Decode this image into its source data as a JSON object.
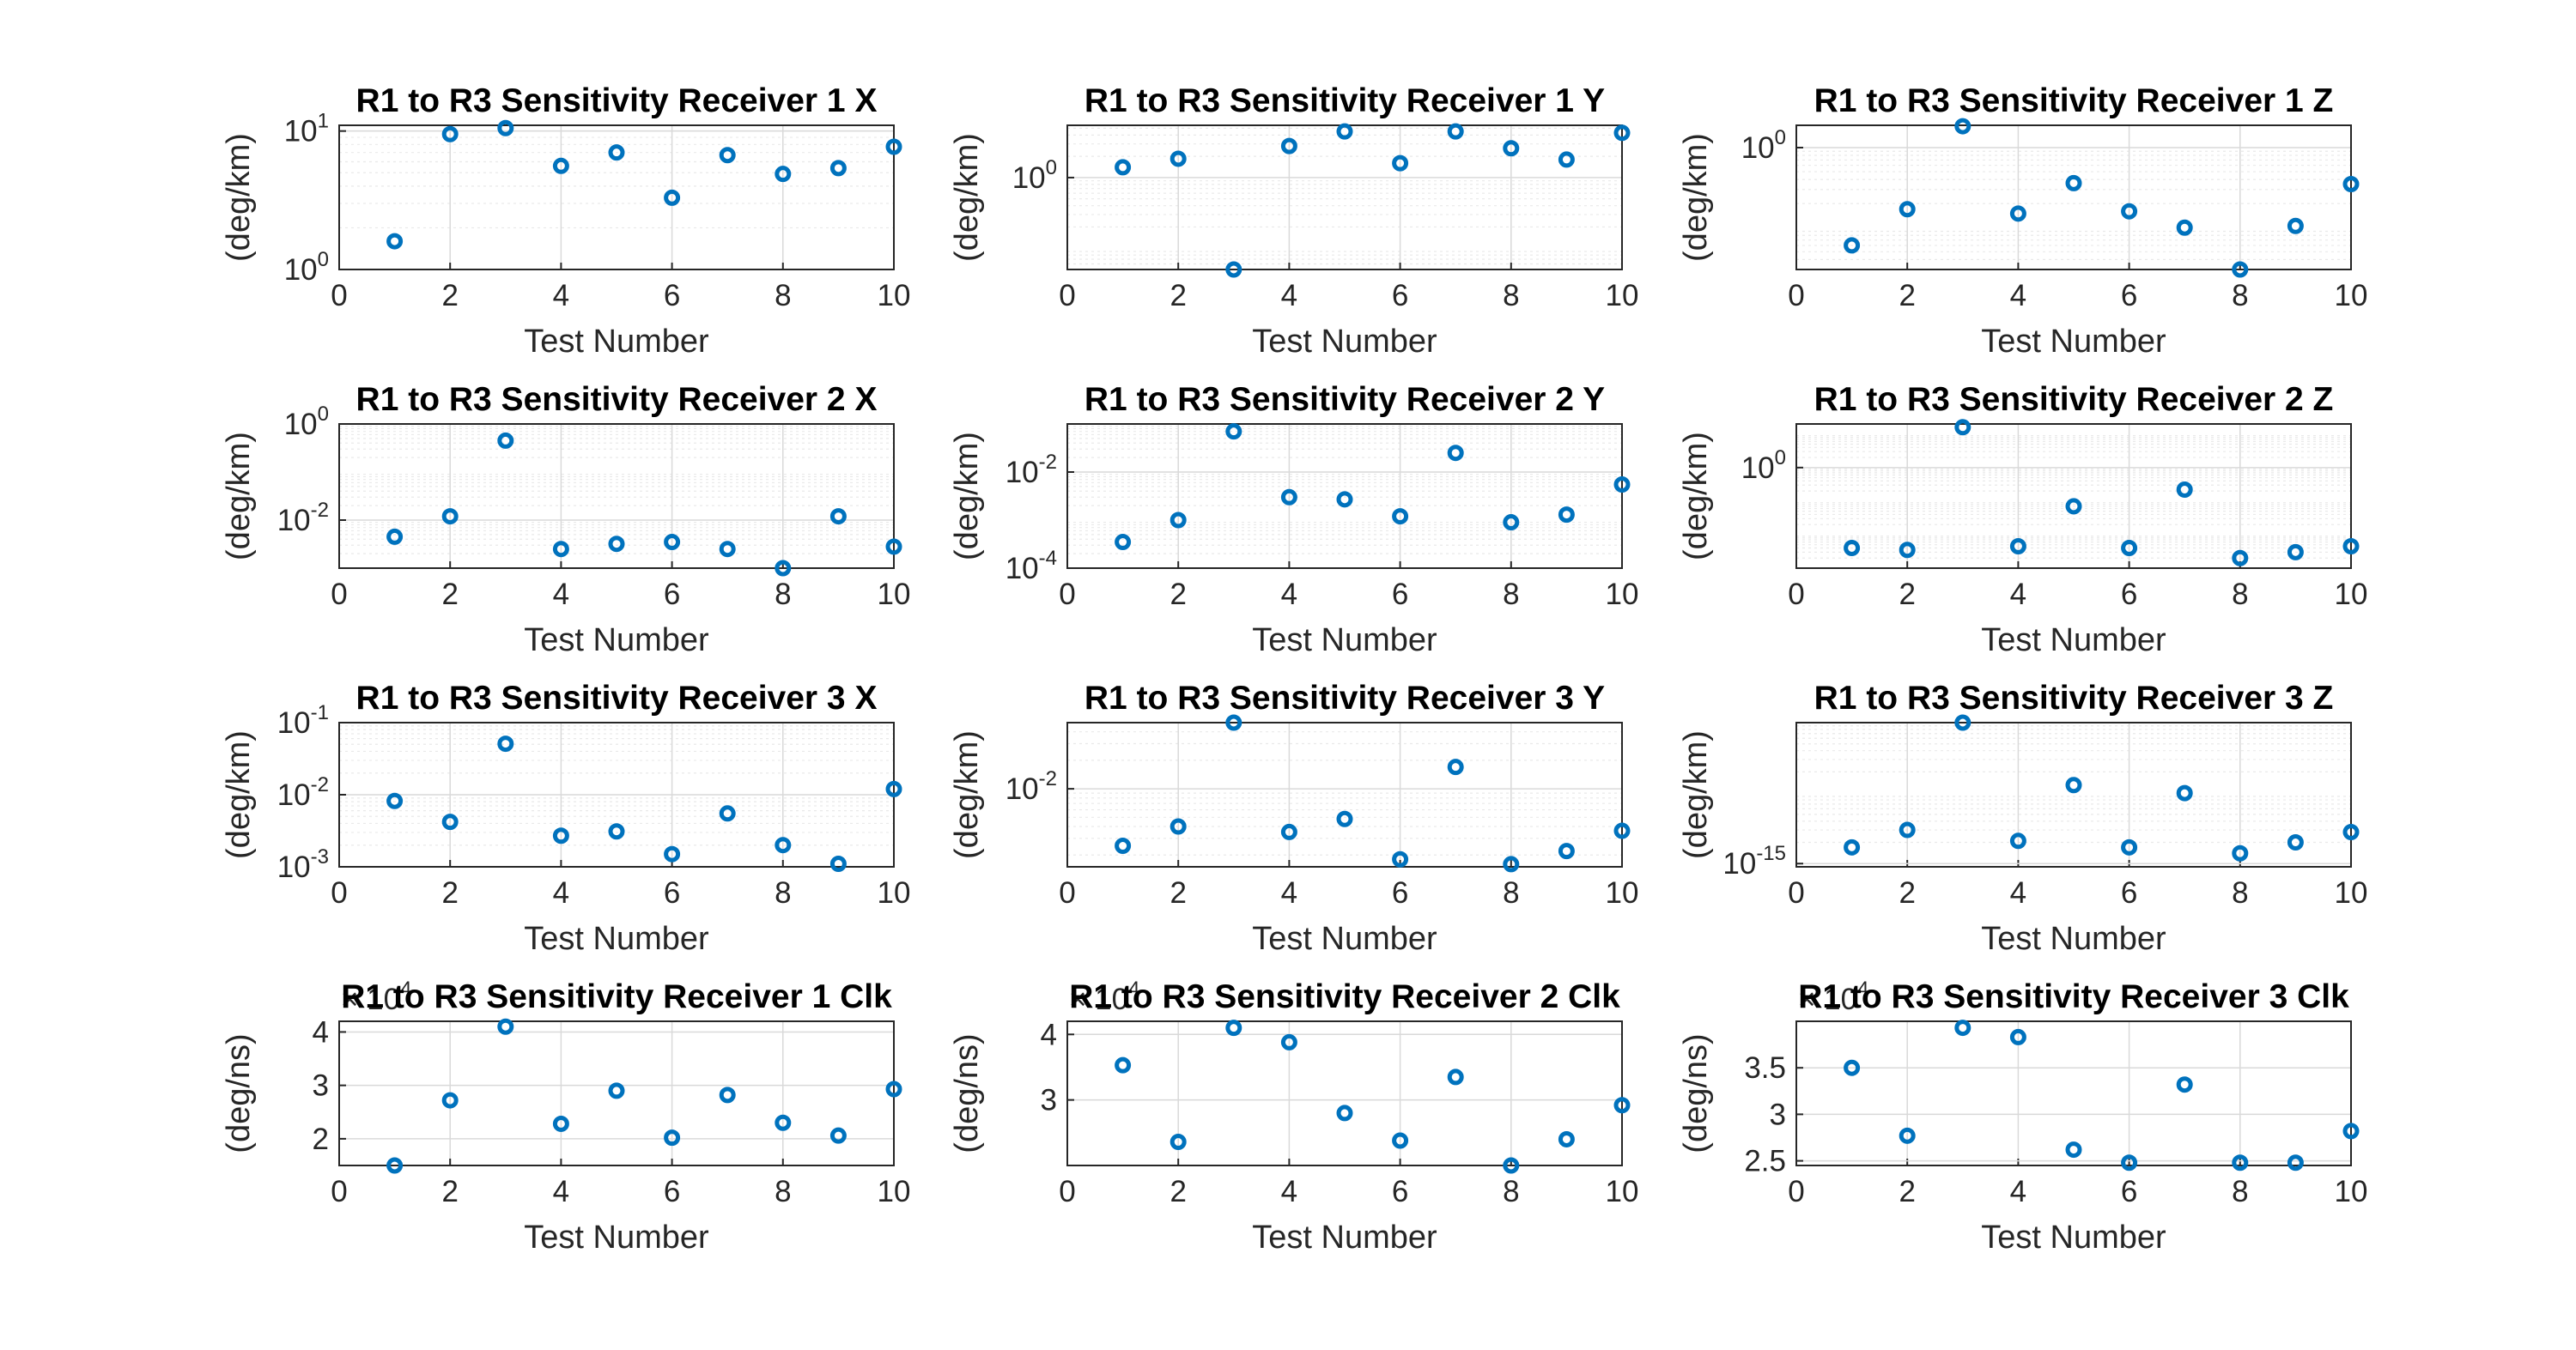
{
  "chart_data": [
    {
      "type": "scatter",
      "title": "R1 to R3 Sensitivity Receiver 1 X",
      "xlabel": "Test Number",
      "ylabel": "(deg/km)",
      "yscale": "log",
      "xlim": [
        0,
        10
      ],
      "xticks": [
        0,
        2,
        4,
        6,
        8,
        10
      ],
      "ylim": [
        1,
        11
      ],
      "yticks": [
        {
          "v": 1,
          "m": "10",
          "e": "0"
        },
        {
          "v": 10,
          "m": "10",
          "e": "1"
        }
      ],
      "grid": "on",
      "x": [
        1,
        2,
        3,
        4,
        5,
        6,
        7,
        8,
        9,
        10
      ],
      "y": [
        1.6,
        9.5,
        10.5,
        5.6,
        7.0,
        3.3,
        6.7,
        4.9,
        5.4,
        7.7
      ]
    },
    {
      "type": "scatter",
      "title": "R1 to R3 Sensitivity Receiver 1 Y",
      "xlabel": "Test Number",
      "ylabel": "(deg/km)",
      "yscale": "log",
      "xlim": [
        0,
        10
      ],
      "xticks": [
        0,
        2,
        4,
        6,
        8,
        10
      ],
      "ylim": [
        0.05,
        5.5
      ],
      "yticks": [
        {
          "v": 1,
          "m": "10",
          "e": "0"
        }
      ],
      "grid": "on",
      "x": [
        1,
        2,
        3,
        4,
        5,
        6,
        7,
        8,
        9,
        10
      ],
      "y": [
        1.4,
        1.85,
        0.05,
        2.8,
        4.5,
        1.6,
        4.5,
        2.6,
        1.8,
        4.3
      ]
    },
    {
      "type": "scatter",
      "title": "R1 to R3 Sensitivity Receiver 1 Z",
      "xlabel": "Test Number",
      "ylabel": "(deg/km)",
      "yscale": "log",
      "xlim": [
        0,
        10
      ],
      "xticks": [
        0,
        2,
        4,
        6,
        8,
        10
      ],
      "ylim": [
        0.03,
        1.9
      ],
      "yticks": [
        {
          "v": 1,
          "m": "10",
          "e": "0"
        }
      ],
      "grid": "on",
      "x": [
        1,
        2,
        3,
        4,
        5,
        6,
        7,
        8,
        9,
        10
      ],
      "y": [
        0.06,
        0.17,
        1.85,
        0.15,
        0.36,
        0.16,
        0.1,
        0.03,
        0.105,
        0.35
      ]
    },
    {
      "type": "scatter",
      "title": "R1 to R3 Sensitivity Receiver 2 X",
      "xlabel": "Test Number",
      "ylabel": "(deg/km)",
      "yscale": "log",
      "xlim": [
        0,
        10
      ],
      "xticks": [
        0,
        2,
        4,
        6,
        8,
        10
      ],
      "ylim": [
        0.001,
        1
      ],
      "yticks": [
        {
          "v": 1,
          "m": "10",
          "e": "0"
        },
        {
          "v": 0.01,
          "m": "10",
          "e": "-2"
        }
      ],
      "grid": "on",
      "x": [
        1,
        2,
        3,
        4,
        5,
        6,
        7,
        8,
        9,
        10
      ],
      "y": [
        0.0045,
        0.012,
        0.45,
        0.0025,
        0.0032,
        0.0035,
        0.0025,
        0.001,
        0.012,
        0.0028
      ]
    },
    {
      "type": "scatter",
      "title": "R1 to R3 Sensitivity Receiver 2 Y",
      "xlabel": "Test Number",
      "ylabel": "(deg/km)",
      "yscale": "log",
      "xlim": [
        0,
        10
      ],
      "xticks": [
        0,
        2,
        4,
        6,
        8,
        10
      ],
      "ylim": [
        0.0001,
        0.1
      ],
      "yticks": [
        {
          "v": 0.01,
          "m": "10",
          "e": "-2"
        },
        {
          "v": 0.0001,
          "m": "10",
          "e": "-4"
        }
      ],
      "grid": "on",
      "x": [
        1,
        2,
        3,
        4,
        5,
        6,
        7,
        8,
        9,
        10
      ],
      "y": [
        0.00035,
        0.001,
        0.07,
        0.003,
        0.0027,
        0.0012,
        0.025,
        0.0009,
        0.0013,
        0.0055
      ]
    },
    {
      "type": "scatter",
      "title": "R1 to R3 Sensitivity Receiver 2 Z",
      "xlabel": "Test Number",
      "ylabel": "(deg/km)",
      "yscale": "log",
      "xlim": [
        0,
        10
      ],
      "xticks": [
        0,
        2,
        4,
        6,
        8,
        10
      ],
      "ylim": [
        0.001,
        20
      ],
      "yticks": [
        {
          "v": 1,
          "m": "10",
          "e": "0"
        }
      ],
      "grid": "on",
      "x": [
        1,
        2,
        3,
        4,
        5,
        6,
        7,
        8,
        9,
        10
      ],
      "y": [
        0.004,
        0.0035,
        16,
        0.0045,
        0.07,
        0.004,
        0.22,
        0.002,
        0.003,
        0.0045
      ]
    },
    {
      "type": "scatter",
      "title": "R1 to R3 Sensitivity Receiver 3 X",
      "xlabel": "Test Number",
      "ylabel": "(deg/km)",
      "yscale": "log",
      "xlim": [
        0,
        10
      ],
      "xticks": [
        0,
        2,
        4,
        6,
        8,
        10
      ],
      "ylim": [
        0.001,
        0.1
      ],
      "yticks": [
        {
          "v": 0.1,
          "m": "10",
          "e": "-1"
        },
        {
          "v": 0.01,
          "m": "10",
          "e": "-2"
        },
        {
          "v": 0.001,
          "m": "10",
          "e": "-3"
        }
      ],
      "grid": "on",
      "x": [
        1,
        2,
        3,
        4,
        5,
        6,
        7,
        8,
        9,
        10
      ],
      "y": [
        0.0082,
        0.0042,
        0.051,
        0.0027,
        0.0031,
        0.0015,
        0.0055,
        0.002,
        0.0011,
        0.012
      ]
    },
    {
      "type": "scatter",
      "title": "R1 to R3 Sensitivity Receiver 3 Y",
      "xlabel": "Test Number",
      "ylabel": "(deg/km)",
      "yscale": "log",
      "xlim": [
        0,
        10
      ],
      "xticks": [
        0,
        2,
        4,
        6,
        8,
        10
      ],
      "ylim": [
        0.0015,
        0.05
      ],
      "yticks": [
        {
          "v": 0.01,
          "m": "10",
          "e": "-2"
        }
      ],
      "grid": "on",
      "x": [
        1,
        2,
        3,
        4,
        5,
        6,
        7,
        8,
        9,
        10
      ],
      "y": [
        0.0025,
        0.004,
        0.05,
        0.0035,
        0.0048,
        0.0018,
        0.017,
        0.0016,
        0.0022,
        0.0036
      ]
    },
    {
      "type": "scatter",
      "title": "R1 to R3 Sensitivity Receiver 3 Z",
      "xlabel": "Test Number",
      "ylabel": "(deg/km)",
      "yscale": "log",
      "xlim": [
        0,
        10
      ],
      "xticks": [
        0,
        2,
        4,
        6,
        8,
        10
      ],
      "ylim": [
        9e-16,
        1e-13
      ],
      "yticks": [
        {
          "v": 1e-15,
          "m": "10",
          "e": "-15"
        }
      ],
      "grid": "on",
      "x": [
        1,
        2,
        3,
        4,
        5,
        6,
        7,
        8,
        9,
        10
      ],
      "y": [
        1.7e-15,
        3e-15,
        1e-13,
        2.1e-15,
        1.3e-14,
        1.7e-15,
        1e-14,
        1.4e-15,
        2e-15,
        2.8e-15
      ]
    },
    {
      "type": "scatter",
      "title": "R1 to R3 Sensitivity Receiver 1 Clk",
      "xlabel": "Test Number",
      "ylabel": "(deg/ns)",
      "yscale": "linear",
      "exponent": "4",
      "xlim": [
        0,
        10
      ],
      "xticks": [
        0,
        2,
        4,
        6,
        8,
        10
      ],
      "ylim": [
        1.5,
        4.2
      ],
      "yticks": [
        {
          "v": 2,
          "t": "2"
        },
        {
          "v": 3,
          "t": "3"
        },
        {
          "v": 4,
          "t": "4"
        }
      ],
      "grid": "on",
      "x": [
        1,
        2,
        3,
        4,
        5,
        6,
        7,
        8,
        9,
        10
      ],
      "y": [
        1.5,
        2.72,
        4.1,
        2.28,
        2.9,
        2.02,
        2.82,
        2.3,
        2.06,
        2.93
      ]
    },
    {
      "type": "scatter",
      "title": "R1 to R3 Sensitivity Receiver 2 Clk",
      "xlabel": "Test Number",
      "ylabel": "(deg/ns)",
      "yscale": "linear",
      "exponent": "4",
      "xlim": [
        0,
        10
      ],
      "xticks": [
        0,
        2,
        4,
        6,
        8,
        10
      ],
      "ylim": [
        2.0,
        4.2
      ],
      "yticks": [
        {
          "v": 3,
          "t": "3"
        },
        {
          "v": 4,
          "t": "4"
        }
      ],
      "grid": "on",
      "x": [
        1,
        2,
        3,
        4,
        5,
        6,
        7,
        8,
        9,
        10
      ],
      "y": [
        3.53,
        2.36,
        4.1,
        3.88,
        2.8,
        2.38,
        3.35,
        2.0,
        2.4,
        2.92
      ]
    },
    {
      "type": "scatter",
      "title": "R1 to R3 Sensitivity Receiver 3 Clk",
      "xlabel": "Test Number",
      "ylabel": "(deg/ns)",
      "yscale": "linear",
      "exponent": "4",
      "xlim": [
        0,
        10
      ],
      "xticks": [
        0,
        2,
        4,
        6,
        8,
        10
      ],
      "ylim": [
        2.45,
        4.0
      ],
      "yticks": [
        {
          "v": 2.5,
          "t": "2.5"
        },
        {
          "v": 3,
          "t": "3"
        },
        {
          "v": 3.5,
          "t": "3.5"
        }
      ],
      "grid": "on",
      "x": [
        1,
        2,
        3,
        4,
        5,
        6,
        7,
        8,
        9,
        10
      ],
      "y": [
        3.5,
        2.77,
        3.93,
        3.83,
        2.62,
        2.48,
        3.32,
        2.48,
        2.48,
        2.82
      ]
    }
  ],
  "colors": {
    "marker": "#0072bd",
    "axis": "#262626",
    "grid": "#d9d9d9"
  }
}
